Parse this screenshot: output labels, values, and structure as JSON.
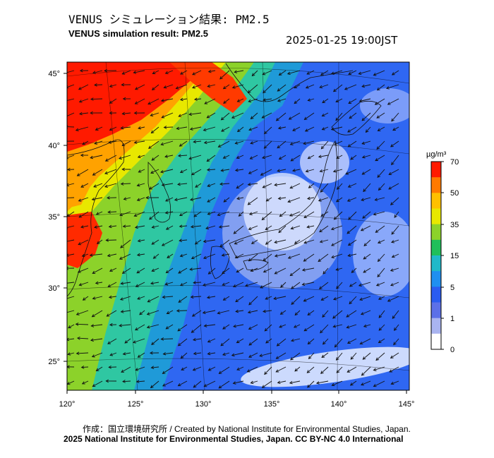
{
  "header": {
    "title_ja": "VENUS シミュレーション結果: PM2.5",
    "title_en": "VENUS simulation result: PM2.5",
    "timestamp": "2025-01-25 19:00JST"
  },
  "map": {
    "lon_labels": [
      "120°",
      "125°",
      "130°",
      "135°",
      "140°",
      "145°"
    ],
    "lat_labels": [
      "45°",
      "40°",
      "35°",
      "30°",
      "25°"
    ],
    "colors": {
      "very_high": "#ff1a00",
      "high": "#ffa200",
      "mid": "#8cd22a",
      "low_mid": "#2fc7a2",
      "low": "#1f8ff0",
      "very_low": "#2b4fff",
      "clean": "#ffffff",
      "coast": "#111111",
      "grid": "#000000"
    }
  },
  "colorbar": {
    "unit": "µg/m³",
    "ticks": [
      "70",
      "50",
      "35",
      "15",
      "5",
      "1",
      "0"
    ],
    "colors": [
      "#ff1a00",
      "#ff7a00",
      "#ffc000",
      "#e8e800",
      "#8cd22a",
      "#1fbf5a",
      "#1fb9c9",
      "#1f8ff0",
      "#2a5cf0",
      "#5c70e8",
      "#a9b4f0",
      "#ffffff"
    ]
  },
  "footer": {
    "credit_line": "作成：国立環境研究所 / Created by National Institute for Environmental Studies, Japan.",
    "copyright_line": "2025 National Institute for Environmental Studies, Japan. CC BY-NC 4.0 International"
  }
}
